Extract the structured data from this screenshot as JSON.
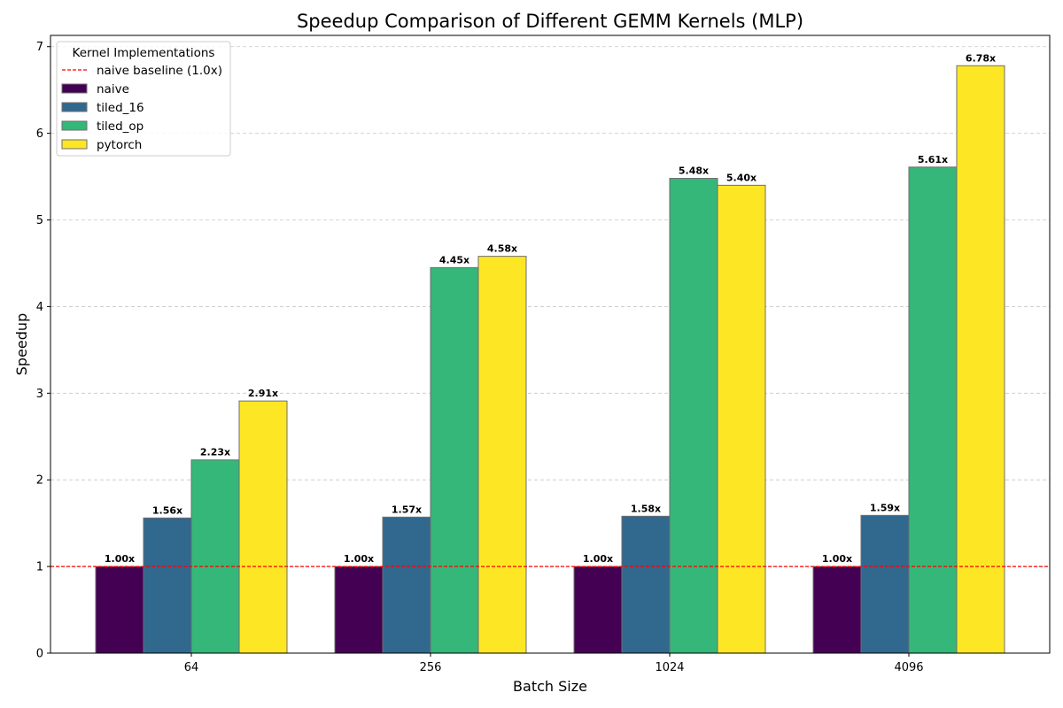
{
  "chart_data": {
    "type": "bar",
    "title": "Speedup Comparison of Different GEMM Kernels (MLP)",
    "xlabel": "Batch Size",
    "ylabel": "Speedup",
    "categories": [
      "64",
      "256",
      "1024",
      "4096"
    ],
    "series": [
      {
        "name": "naive",
        "color": "#440154",
        "values": [
          1.0,
          1.0,
          1.0,
          1.0
        ],
        "labels": [
          "1.00x",
          "1.00x",
          "1.00x",
          "1.00x"
        ]
      },
      {
        "name": "tiled_16",
        "color": "#31688e",
        "values": [
          1.56,
          1.57,
          1.58,
          1.59
        ],
        "labels": [
          "1.56x",
          "1.57x",
          "1.58x",
          "1.59x"
        ]
      },
      {
        "name": "tiled_op",
        "color": "#35b779",
        "values": [
          2.23,
          4.45,
          5.48,
          5.61
        ],
        "labels": [
          "2.23x",
          "4.45x",
          "5.48x",
          "5.61x"
        ]
      },
      {
        "name": "pytorch",
        "color": "#fde725",
        "values": [
          2.91,
          4.58,
          5.4,
          6.78
        ],
        "labels": [
          "2.91x",
          "4.58x",
          "5.40x",
          "6.78x"
        ]
      }
    ],
    "ylim": [
      0,
      7.13
    ],
    "yticks": [
      0,
      1,
      2,
      3,
      4,
      5,
      6,
      7
    ],
    "baseline": {
      "value": 1.0,
      "label": "naive baseline (1.0x)",
      "color": "#ff0000",
      "style": "dashed"
    },
    "grid": {
      "y": true,
      "x": false,
      "style": "dashed",
      "color": "#c8c8c8"
    },
    "legend": {
      "title": "Kernel Implementations",
      "placement": "top-left"
    }
  }
}
